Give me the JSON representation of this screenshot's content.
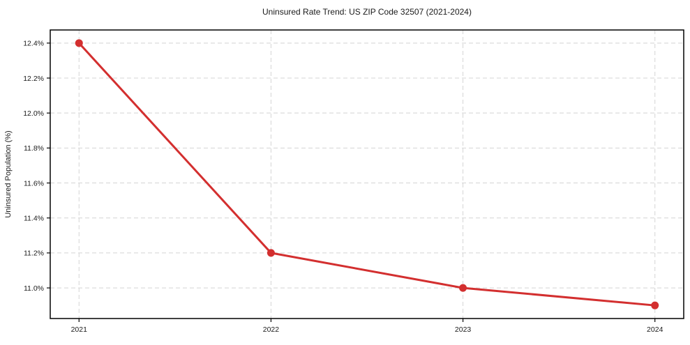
{
  "chart_data": {
    "type": "line",
    "title": "Uninsured Rate Trend: US ZIP Code 32507 (2021-2024)",
    "xlabel": "",
    "ylabel": "Uninsured Population (%)",
    "x": [
      2021,
      2022,
      2023,
      2024
    ],
    "values": [
      12.4,
      11.2,
      11.0,
      10.9
    ],
    "x_tick_labels": [
      "2021",
      "2022",
      "2023",
      "2024"
    ],
    "y_ticks": [
      11.0,
      11.2,
      11.4,
      11.6,
      11.8,
      12.0,
      12.2,
      12.4
    ],
    "y_tick_labels": [
      "11.0%",
      "11.2%",
      "11.4%",
      "11.6%",
      "11.8%",
      "12.0%",
      "12.2%",
      "12.4%"
    ],
    "xlim": [
      2020.85,
      2024.15
    ],
    "ylim": [
      10.825,
      12.475
    ],
    "grid": true,
    "grid_style": "dashed",
    "legend": false,
    "colors": {
      "line": "#d32f2f",
      "marker": "#d32f2f",
      "grid": "#d4d4d4",
      "spine": "#000000",
      "text": "#1a1a1a"
    }
  }
}
